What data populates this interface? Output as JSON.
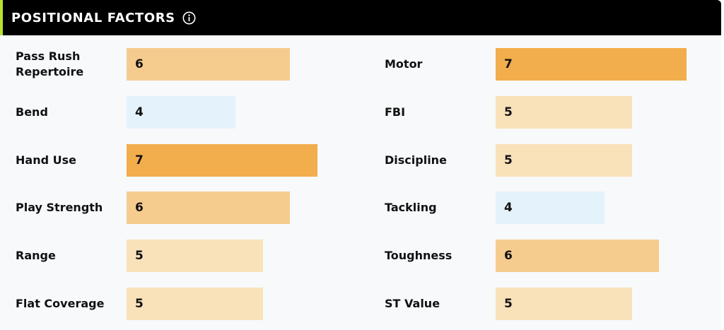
{
  "header": {
    "title": "POSITIONAL FACTORS",
    "info_icon": "info-circle-icon"
  },
  "scale_max": 10,
  "colors": {
    "grade_4": "#e4f2fc",
    "grade_5": "#f9e1ba",
    "grade_6": "#f6cc8e",
    "grade_7": "#f2ad4c",
    "header_bg": "#000000",
    "accent": "#b7e230"
  },
  "left_factors": [
    {
      "label": "Pass Rush Repertoire",
      "value": 6
    },
    {
      "label": "Bend",
      "value": 4
    },
    {
      "label": "Hand Use",
      "value": 7
    },
    {
      "label": "Play Strength",
      "value": 6
    },
    {
      "label": "Range",
      "value": 5
    },
    {
      "label": "Flat Coverage",
      "value": 5
    }
  ],
  "right_factors": [
    {
      "label": "Motor",
      "value": 7
    },
    {
      "label": "FBI",
      "value": 5
    },
    {
      "label": "Discipline",
      "value": 5
    },
    {
      "label": "Tackling",
      "value": 4
    },
    {
      "label": "Toughness",
      "value": 6
    },
    {
      "label": "ST Value",
      "value": 5
    }
  ]
}
